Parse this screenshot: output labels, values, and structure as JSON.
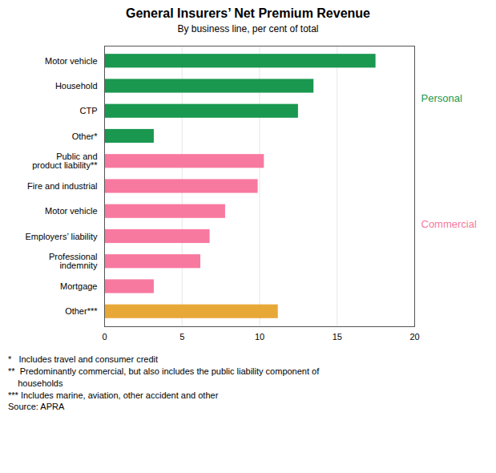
{
  "chart_data": {
    "type": "bar",
    "orientation": "horizontal",
    "title": "General Insurers’ Net Premium Revenue",
    "subtitle": "By business line, per cent of total",
    "categories": [
      "Motor vehicle",
      "Household",
      "CTP",
      "Other*",
      "Public and\nproduct liability**",
      "Fire and industrial",
      "Motor vehicle",
      "Employers’ liability",
      "Professional\nindemnity",
      "Mortgage",
      "Other***"
    ],
    "values": [
      17.5,
      13.5,
      12.5,
      3.2,
      10.3,
      9.9,
      7.8,
      6.8,
      6.2,
      3.2,
      11.2
    ],
    "colors": [
      "#1a9850",
      "#1a9850",
      "#1a9850",
      "#1a9850",
      "#f879a0",
      "#f879a0",
      "#f879a0",
      "#f879a0",
      "#f879a0",
      "#f879a0",
      "#e8a838"
    ],
    "xlim": [
      0,
      20
    ],
    "xticks": [
      0,
      5,
      10,
      15,
      20
    ],
    "grid": true,
    "annotations": [
      {
        "text": "Personal",
        "color": "#1a9850"
      },
      {
        "text": "Commercial",
        "color": "#f879a0"
      }
    ],
    "footnotes": [
      "*   Includes travel and consumer credit",
      "**  Predominantly commercial, but also includes the public liability component of",
      "    households",
      "*** Includes marine, aviation, other accident and other",
      "Source: APRA"
    ]
  }
}
